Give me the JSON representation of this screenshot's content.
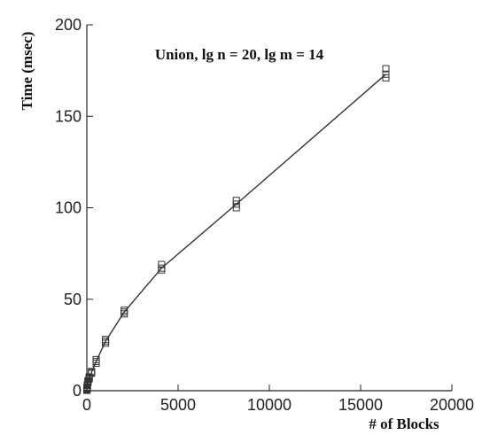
{
  "chart_data": {
    "type": "line",
    "title": "Union, lg n = 20, lg m = 14",
    "xlabel": "# of Blocks",
    "ylabel": "Time (msec)",
    "xlim": [
      0,
      20000
    ],
    "ylim": [
      0,
      200
    ],
    "xticks": [
      0,
      5000,
      10000,
      15000,
      20000
    ],
    "yticks": [
      0,
      50,
      100,
      150,
      200
    ],
    "grid": false,
    "legend": "none",
    "series": [
      {
        "marker": "square",
        "x": [
          1,
          2,
          4,
          8,
          16,
          32,
          64,
          128,
          256,
          512,
          1024,
          2048,
          4096,
          8192,
          16384
        ],
        "y": [
          0.3,
          0.5,
          0.8,
          1.2,
          1.8,
          3,
          5,
          7,
          10,
          16,
          27,
          43,
          67,
          102,
          173
        ],
        "replicates": [
          [
            0.2,
            0.3,
            0.4
          ],
          [
            0.4,
            0.5,
            0.6
          ],
          [
            0.7,
            0.8,
            0.9
          ],
          [
            1.1,
            1.2,
            1.4
          ],
          [
            1.6,
            1.8,
            2
          ],
          [
            2.8,
            3,
            3.2
          ],
          [
            4.6,
            5,
            5.4
          ],
          [
            6.5,
            7,
            7.5
          ],
          [
            9.5,
            10,
            10.5
          ],
          [
            15,
            16,
            17
          ],
          [
            26,
            27,
            28
          ],
          [
            42,
            43,
            44
          ],
          [
            66,
            67,
            69
          ],
          [
            100,
            102,
            104
          ],
          [
            171,
            173,
            176
          ]
        ]
      }
    ]
  }
}
